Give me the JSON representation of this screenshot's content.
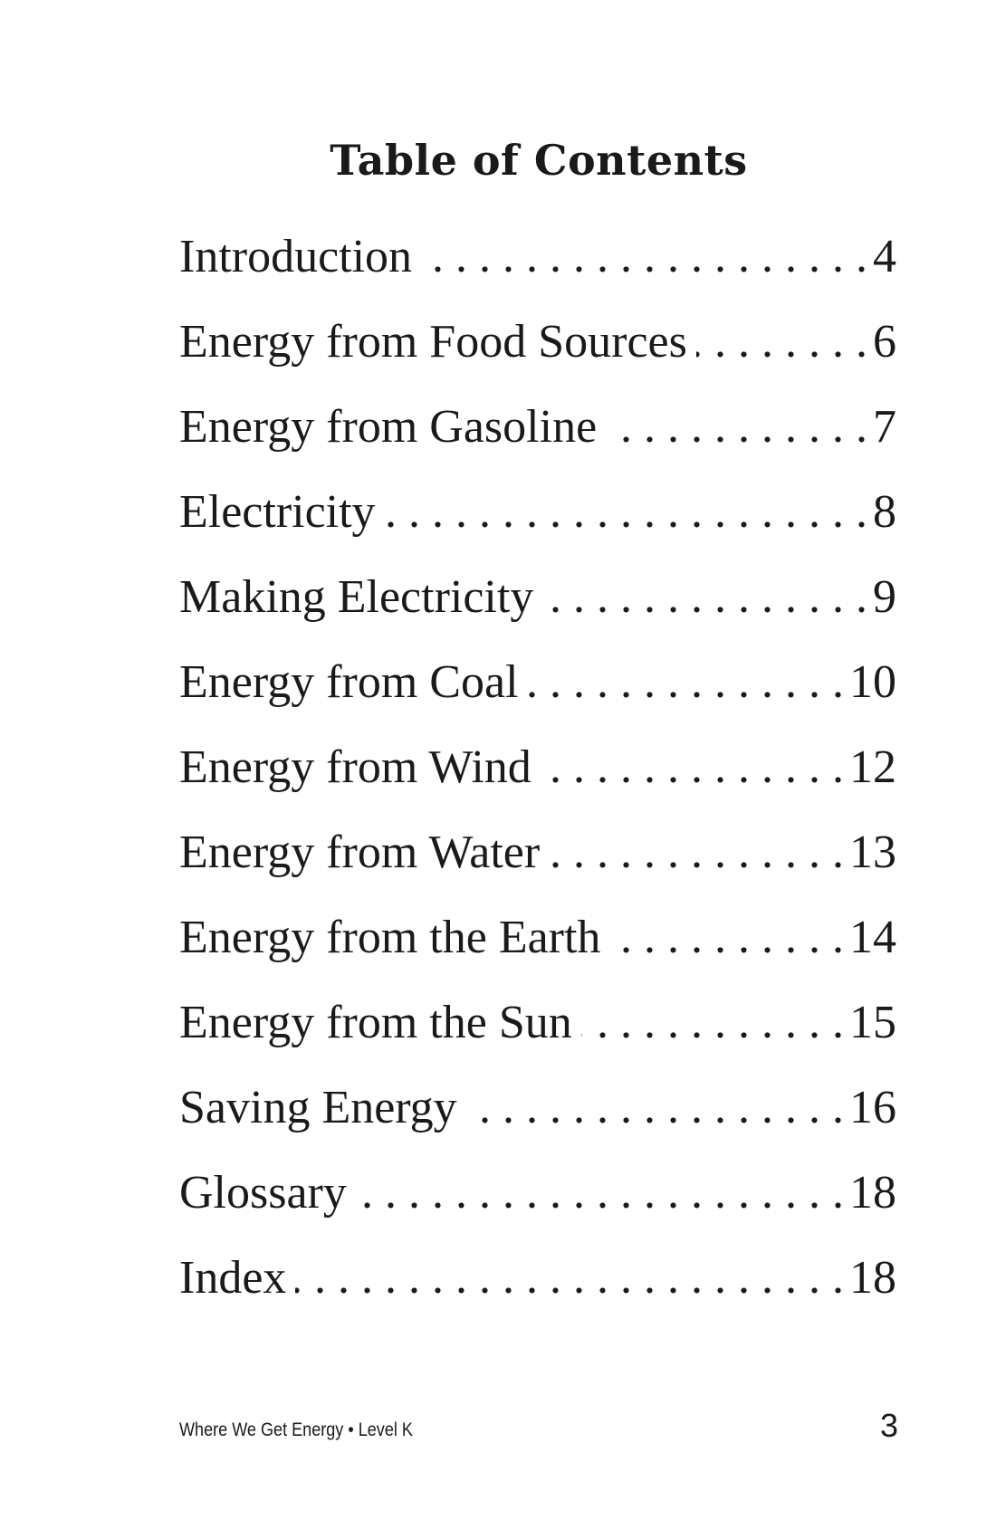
{
  "toc": {
    "title": "Table of Contents",
    "entries": [
      {
        "label": "Introduction",
        "page": "4"
      },
      {
        "label": "Energy from Food Sources",
        "page": "6"
      },
      {
        "label": "Energy from Gasoline",
        "page": "7"
      },
      {
        "label": "Electricity",
        "page": "8"
      },
      {
        "label": "Making Electricity",
        "page": "9"
      },
      {
        "label": "Energy from Coal",
        "page": "10"
      },
      {
        "label": "Energy from Wind",
        "page": "12"
      },
      {
        "label": "Energy from Water",
        "page": "13"
      },
      {
        "label": "Energy from the Earth",
        "page": "14"
      },
      {
        "label": "Energy from the Sun",
        "page": "15"
      },
      {
        "label": "Saving Energy",
        "page": "16"
      },
      {
        "label": "Glossary",
        "page": "18"
      },
      {
        "label": "Index",
        "page": "18"
      }
    ]
  },
  "footer": {
    "book_title": "Where We Get Energy • Level K",
    "page_number": "3"
  }
}
